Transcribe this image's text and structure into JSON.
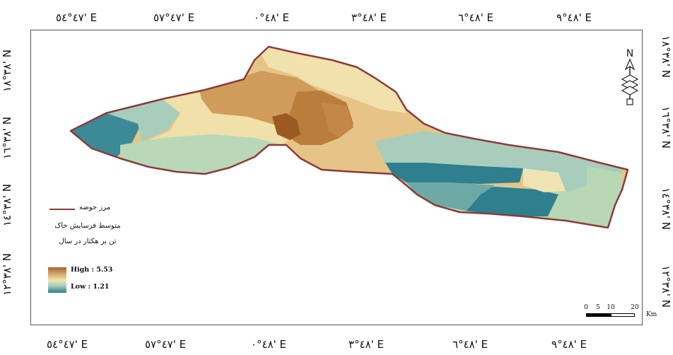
{
  "coordinates": {
    "top": [
      "٤٧°٥٤' E",
      "٤٧°٥٧' E",
      "٤٨°٠' E",
      "٤٨°٣' E",
      "٤٨°٦' E",
      "٤٨°٩' E"
    ],
    "bottom": [
      "٤٧°٥٤' E",
      "٤٧°٥٧' E",
      "٤٨°٠' E",
      "٤٨°٣' E",
      "٤٨°٦' E",
      "٤٨°٩' E"
    ],
    "left": [
      "٣٨°١٨' N",
      "٣٨°١٦' N",
      "٣٨°١٤' N",
      "٣٨°١٢' N"
    ],
    "right": [
      "٣٨°١٨' N",
      "٣٨°١٦' N",
      "٣٨°١٤' N",
      "٣٨°١٢' N"
    ]
  },
  "legend": {
    "boundary_label": "مرز حوضه",
    "title_line1": "متوسط فرسایش خاک",
    "title_line2": "تن بر هکتار در سال",
    "high_label": "High : 5.53",
    "low_label": "Low : 1.21",
    "high_value": 5.53,
    "low_value": 1.21
  },
  "scalebar": {
    "ticks": [
      "0",
      "5",
      "10",
      "20"
    ],
    "unit": "Km"
  },
  "north_arrow": {
    "label": "N",
    "icon": "north-arrow-icon"
  },
  "colors": {
    "boundary": "#8c3b3b",
    "high": "#a8642a",
    "mid": "#f3e3b0",
    "low": "#2f7f8e"
  }
}
